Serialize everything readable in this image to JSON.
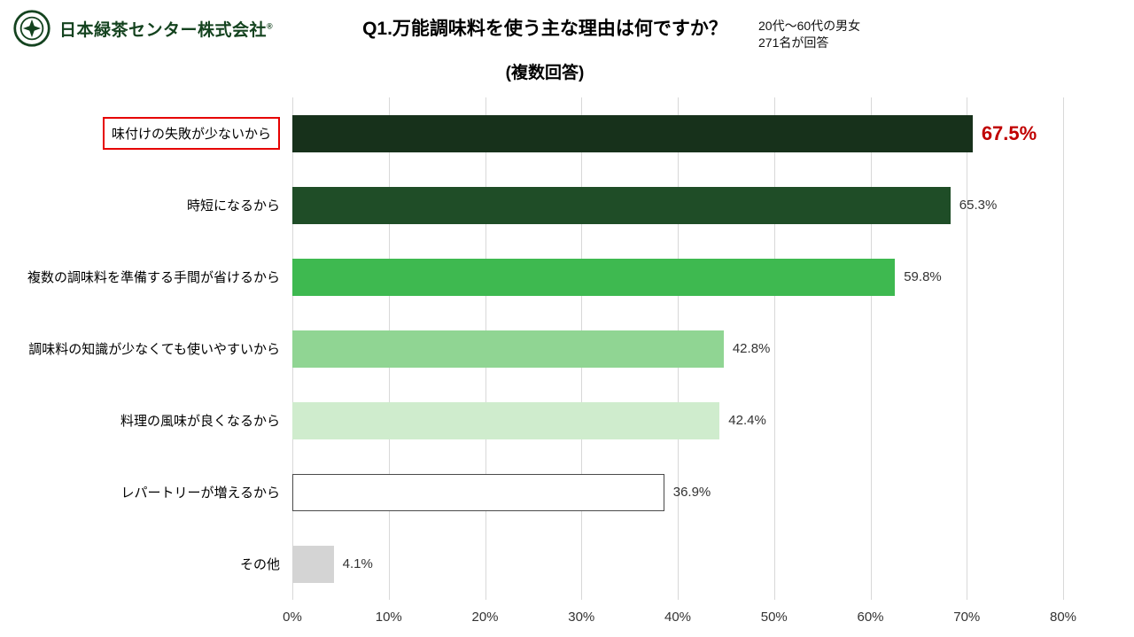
{
  "header": {
    "logo_text": "日本緑茶センター株式会社",
    "logo_reg": "®",
    "title_line1": "Q1.万能調味料を使う主な理由は何ですか？",
    "title_line2": "(複数回答)",
    "respondents_line1": "20代〜60代の男女",
    "respondents_line2": "271名が回答"
  },
  "chart_data": {
    "type": "bar",
    "orientation": "horizontal",
    "title": "Q1.万能調味料を使う主な理由は何ですか？(複数回答)",
    "subtitle": "20代〜60代の男女 271名が回答",
    "categories": [
      "味付けの失敗が少ないから",
      "時短になるから",
      "複数の調味料を準備する手間が省けるから",
      "調味料の知識が少なくても使いやすいから",
      "料理の風味が良くなるから",
      "レパートリーが増えるから",
      "その他"
    ],
    "values": [
      67.5,
      65.3,
      59.8,
      42.8,
      42.4,
      36.9,
      4.1
    ],
    "value_labels": [
      "67.5%",
      "65.3%",
      "59.8%",
      "42.8%",
      "42.4%",
      "36.9%",
      "4.1%"
    ],
    "bar_colors": [
      "#17311b",
      "#1f4d27",
      "#3eb950",
      "#90d593",
      "#cfeccd",
      "#ffffff",
      "#d4d4d4"
    ],
    "bar_border_colors": [
      "",
      "",
      "",
      "",
      "",
      "#4a4a4a",
      ""
    ],
    "highlight_index": 0,
    "highlight_box_color": "#e60000",
    "highlight_value_color": "#c00000",
    "xlim": [
      0,
      80
    ],
    "x_tick_labels": [
      "0%",
      "10%",
      "20%",
      "30%",
      "40%",
      "50%",
      "60%",
      "70%",
      "80%"
    ],
    "grid": true,
    "gridline_color": "#d8d8d8",
    "legend": "none"
  }
}
